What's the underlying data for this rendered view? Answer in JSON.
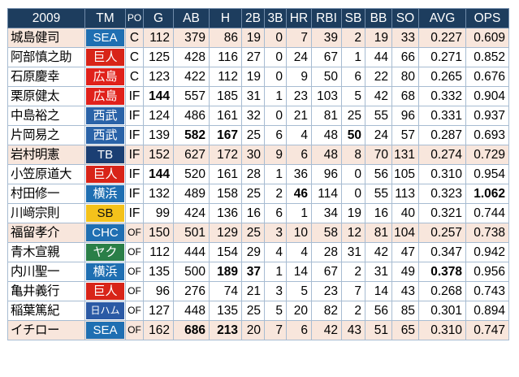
{
  "header": {
    "year": "2009",
    "cols": [
      "TM",
      "PO",
      "G",
      "AB",
      "H",
      "2B",
      "3B",
      "HR",
      "RBI",
      "SB",
      "BB",
      "SO",
      "AVG",
      "OPS"
    ]
  },
  "rows": [
    {
      "name": "城島健司",
      "team": "SEA",
      "team_style": "blue",
      "po": "C",
      "hl": true,
      "G": "112",
      "AB": "379",
      "H": "86",
      "2B": "19",
      "3B": "0",
      "HR": "7",
      "RBI": "39",
      "SB": "2",
      "BB": "19",
      "SO": "33",
      "AVG": "0.227",
      "OPS": "0.609",
      "bold": []
    },
    {
      "name": "阿部慎之助",
      "team": "巨人",
      "team_style": "orange",
      "po": "C",
      "hl": false,
      "G": "125",
      "AB": "428",
      "H": "116",
      "2B": "27",
      "3B": "0",
      "HR": "24",
      "RBI": "67",
      "SB": "1",
      "BB": "44",
      "SO": "66",
      "AVG": "0.271",
      "OPS": "0.852",
      "bold": []
    },
    {
      "name": "石原慶幸",
      "team": "広島",
      "team_style": "red",
      "po": "C",
      "hl": false,
      "G": "123",
      "AB": "422",
      "H": "112",
      "2B": "19",
      "3B": "0",
      "HR": "9",
      "RBI": "50",
      "SB": "6",
      "BB": "22",
      "SO": "80",
      "AVG": "0.265",
      "OPS": "0.676",
      "bold": []
    },
    {
      "name": "栗原健太",
      "team": "広島",
      "team_style": "red",
      "po": "IF",
      "hl": false,
      "G": "144",
      "AB": "557",
      "H": "185",
      "2B": "31",
      "3B": "1",
      "HR": "23",
      "RBI": "103",
      "SB": "5",
      "BB": "42",
      "SO": "68",
      "AVG": "0.332",
      "OPS": "0.904",
      "bold": [
        "G"
      ]
    },
    {
      "name": "中島裕之",
      "team": "西武",
      "team_style": "bluef",
      "po": "IF",
      "hl": false,
      "G": "124",
      "AB": "486",
      "H": "161",
      "2B": "32",
      "3B": "0",
      "HR": "21",
      "RBI": "81",
      "SB": "25",
      "BB": "55",
      "SO": "96",
      "AVG": "0.331",
      "OPS": "0.937",
      "bold": []
    },
    {
      "name": "片岡易之",
      "team": "西武",
      "team_style": "bluef",
      "po": "IF",
      "hl": false,
      "G": "139",
      "AB": "582",
      "H": "167",
      "2B": "25",
      "3B": "6",
      "HR": "4",
      "RBI": "48",
      "SB": "50",
      "BB": "24",
      "SO": "57",
      "AVG": "0.287",
      "OPS": "0.693",
      "bold": [
        "AB",
        "H",
        "SB"
      ]
    },
    {
      "name": "岩村明憲",
      "team": "TB",
      "team_style": "navy",
      "po": "IF",
      "hl": true,
      "G": "152",
      "AB": "627",
      "H": "172",
      "2B": "30",
      "3B": "9",
      "HR": "6",
      "RBI": "48",
      "SB": "8",
      "BB": "70",
      "SO": "131",
      "AVG": "0.274",
      "OPS": "0.729",
      "bold": []
    },
    {
      "name": "小笠原道大",
      "team": "巨人",
      "team_style": "orange",
      "po": "IF",
      "hl": false,
      "G": "144",
      "AB": "520",
      "H": "161",
      "2B": "28",
      "3B": "1",
      "HR": "36",
      "RBI": "96",
      "SB": "0",
      "BB": "56",
      "SO": "105",
      "AVG": "0.310",
      "OPS": "0.954",
      "bold": [
        "G"
      ]
    },
    {
      "name": "村田修一",
      "team": "横浜",
      "team_style": "blue",
      "po": "IF",
      "hl": false,
      "G": "132",
      "AB": "489",
      "H": "158",
      "2B": "25",
      "3B": "2",
      "HR": "46",
      "RBI": "114",
      "SB": "0",
      "BB": "55",
      "SO": "113",
      "AVG": "0.323",
      "OPS": "1.062",
      "bold": [
        "HR",
        "OPS"
      ]
    },
    {
      "name": "川﨑宗則",
      "team": "SB",
      "team_style": "yellow",
      "po": "IF",
      "hl": false,
      "G": "99",
      "AB": "424",
      "H": "136",
      "2B": "16",
      "3B": "6",
      "HR": "1",
      "RBI": "34",
      "SB": "19",
      "BB": "16",
      "SO": "40",
      "AVG": "0.321",
      "OPS": "0.744",
      "bold": []
    },
    {
      "name": "福留孝介",
      "team": "CHC",
      "team_style": "blue",
      "po": "OF",
      "hl": true,
      "G": "150",
      "AB": "501",
      "H": "129",
      "2B": "25",
      "3B": "3",
      "HR": "10",
      "RBI": "58",
      "SB": "12",
      "BB": "81",
      "SO": "104",
      "AVG": "0.257",
      "OPS": "0.738",
      "bold": []
    },
    {
      "name": "青木宣親",
      "team": "ヤク",
      "team_style": "green",
      "po": "OF",
      "hl": false,
      "G": "112",
      "AB": "444",
      "H": "154",
      "2B": "29",
      "3B": "4",
      "HR": "4",
      "RBI": "28",
      "SB": "31",
      "BB": "42",
      "SO": "47",
      "AVG": "0.347",
      "OPS": "0.942",
      "bold": []
    },
    {
      "name": "内川聖一",
      "team": "横浜",
      "team_style": "blue",
      "po": "OF",
      "hl": false,
      "G": "135",
      "AB": "500",
      "H": "189",
      "2B": "37",
      "3B": "1",
      "HR": "14",
      "RBI": "67",
      "SB": "2",
      "BB": "31",
      "SO": "49",
      "AVG": "0.378",
      "OPS": "0.956",
      "bold": [
        "H",
        "2B",
        "AVG"
      ]
    },
    {
      "name": "亀井義行",
      "team": "巨人",
      "team_style": "orange",
      "po": "OF",
      "hl": false,
      "G": "96",
      "AB": "276",
      "H": "74",
      "2B": "21",
      "3B": "3",
      "HR": "5",
      "RBI": "23",
      "SB": "7",
      "BB": "14",
      "SO": "43",
      "AVG": "0.268",
      "OPS": "0.743",
      "bold": []
    },
    {
      "name": "稲葉篤紀",
      "team": "日ハム",
      "team_style": "nh",
      "po": "OF",
      "hl": false,
      "G": "127",
      "AB": "448",
      "H": "135",
      "2B": "25",
      "3B": "5",
      "HR": "20",
      "RBI": "82",
      "SB": "2",
      "BB": "56",
      "SO": "85",
      "AVG": "0.301",
      "OPS": "0.894",
      "bold": []
    },
    {
      "name": "イチロー",
      "team": "SEA",
      "team_style": "blue",
      "po": "OF",
      "hl": true,
      "G": "162",
      "AB": "686",
      "H": "213",
      "2B": "20",
      "3B": "7",
      "HR": "6",
      "RBI": "42",
      "SB": "43",
      "BB": "51",
      "SO": "65",
      "AVG": "0.310",
      "OPS": "0.747",
      "bold": [
        "AB",
        "H"
      ]
    }
  ]
}
